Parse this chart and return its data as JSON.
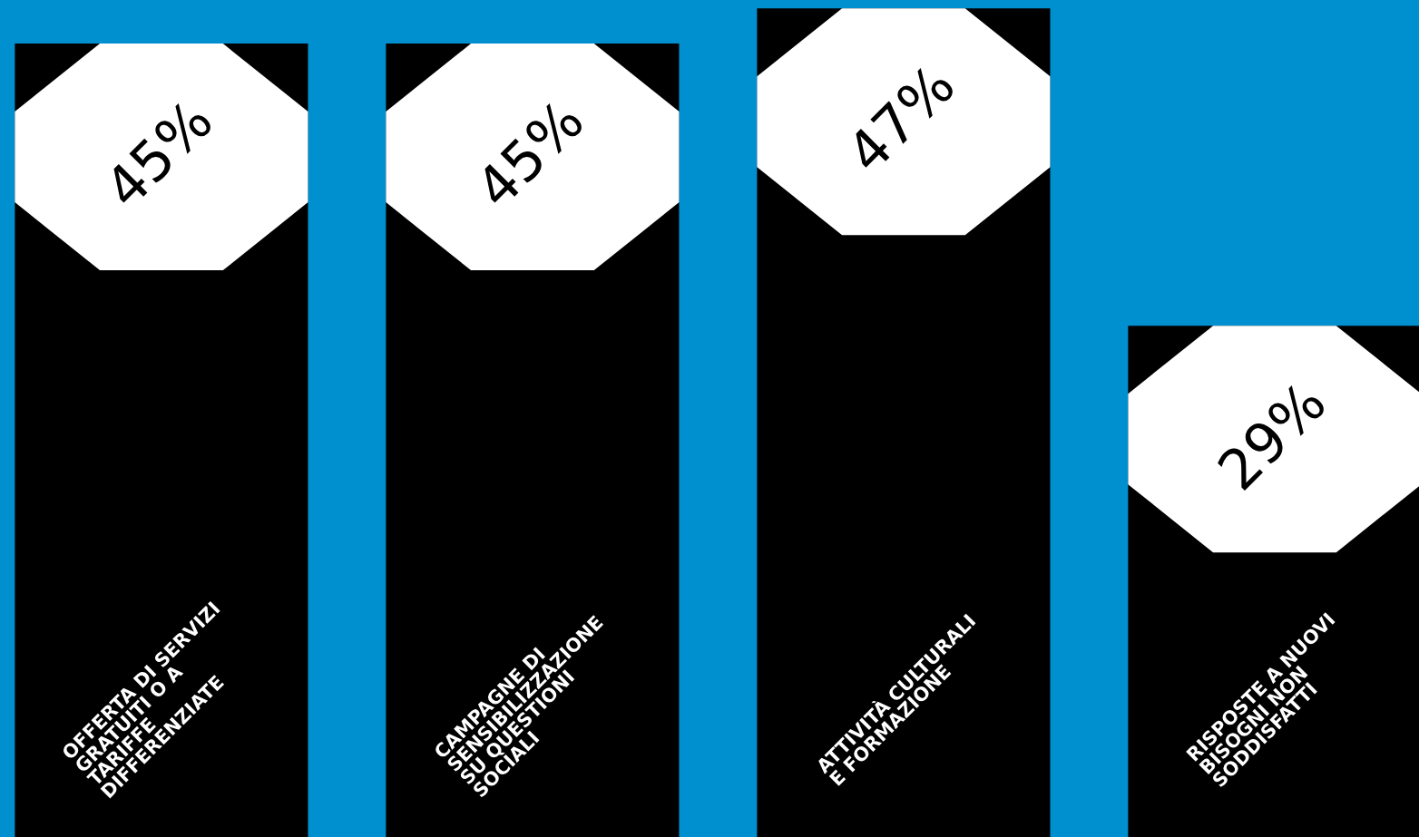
{
  "chart_data": {
    "type": "bar",
    "categories": [
      "OFFERTA DI SERVIZI\nGRATUITI O A\nTARIFFE\nDIFFERENZIATE",
      "CAMPAGNE DI\nSENSIBILIZZAZIONE\nSU QUESTIONI\nSOCIALI",
      "ATTIVITÀ CULTURALI\nE FORMAZIONE",
      "RISPOSTE A NUOVI\nBISOGNI NON\nSODDISFATTI"
    ],
    "values": [
      45,
      45,
      47,
      29
    ],
    "value_labels": [
      "45%",
      "45%",
      "47%",
      "29%"
    ],
    "color": "#000000",
    "legend": false
  }
}
